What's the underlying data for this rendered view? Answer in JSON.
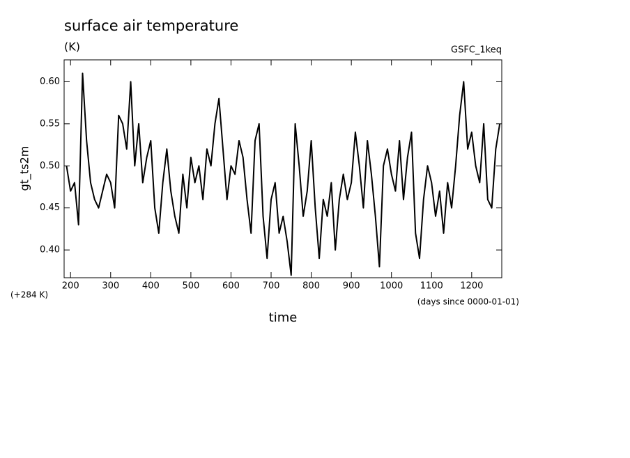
{
  "chart_data": {
    "type": "line",
    "title": "surface air temperature",
    "subtitle": "(K)",
    "annotation": "GSFC_1keq",
    "y_offset_label": "(+284 K)",
    "x_unit_label": "(days since 0000-01-01)",
    "xlabel": "time",
    "ylabel": "gt_ts2m",
    "xlim": [
      184,
      1275
    ],
    "ylim": [
      0.367,
      0.626
    ],
    "xticks": [
      200,
      300,
      400,
      500,
      600,
      700,
      800,
      900,
      1000,
      1100,
      1200
    ],
    "yticks": [
      {
        "value": 0.4,
        "label": "0.40"
      },
      0.45,
      {
        "value": 0.5,
        "label": "0.50"
      },
      0.55,
      {
        "value": 0.6,
        "label": "0.60"
      }
    ],
    "x": [
      190,
      200,
      210,
      220,
      230,
      240,
      250,
      260,
      270,
      280,
      290,
      300,
      310,
      320,
      330,
      340,
      350,
      360,
      370,
      380,
      390,
      400,
      410,
      420,
      430,
      440,
      450,
      460,
      470,
      480,
      490,
      500,
      510,
      520,
      530,
      540,
      550,
      560,
      570,
      580,
      590,
      600,
      610,
      620,
      630,
      640,
      650,
      660,
      670,
      680,
      690,
      700,
      710,
      720,
      730,
      740,
      750,
      760,
      770,
      780,
      790,
      800,
      810,
      820,
      830,
      840,
      850,
      860,
      870,
      880,
      890,
      900,
      910,
      920,
      930,
      940,
      950,
      960,
      970,
      980,
      990,
      1000,
      1010,
      1020,
      1030,
      1040,
      1050,
      1060,
      1070,
      1080,
      1090,
      1100,
      1110,
      1120,
      1130,
      1140,
      1150,
      1160,
      1170,
      1180,
      1190,
      1200,
      1210,
      1220,
      1230,
      1240,
      1250,
      1260,
      1270
    ],
    "series": [
      {
        "name": "gt_ts2m",
        "color": "#000000",
        "values": [
          0.5,
          0.47,
          0.48,
          0.43,
          0.61,
          0.53,
          0.48,
          0.46,
          0.45,
          0.47,
          0.49,
          0.48,
          0.45,
          0.56,
          0.55,
          0.52,
          0.6,
          0.5,
          0.55,
          0.48,
          0.51,
          0.53,
          0.45,
          0.42,
          0.48,
          0.52,
          0.47,
          0.44,
          0.42,
          0.49,
          0.45,
          0.51,
          0.48,
          0.5,
          0.46,
          0.52,
          0.5,
          0.55,
          0.58,
          0.52,
          0.46,
          0.5,
          0.49,
          0.53,
          0.51,
          0.46,
          0.42,
          0.53,
          0.55,
          0.44,
          0.39,
          0.46,
          0.48,
          0.42,
          0.44,
          0.41,
          0.37,
          0.55,
          0.5,
          0.44,
          0.47,
          0.53,
          0.45,
          0.39,
          0.46,
          0.44,
          0.48,
          0.4,
          0.46,
          0.49,
          0.46,
          0.48,
          0.54,
          0.5,
          0.45,
          0.53,
          0.49,
          0.44,
          0.38,
          0.5,
          0.52,
          0.49,
          0.47,
          0.53,
          0.46,
          0.51,
          0.54,
          0.42,
          0.39,
          0.46,
          0.5,
          0.48,
          0.44,
          0.47,
          0.42,
          0.48,
          0.45,
          0.5,
          0.56,
          0.6,
          0.52,
          0.54,
          0.5,
          0.48,
          0.55,
          0.46,
          0.45,
          0.52,
          0.55
        ]
      }
    ]
  }
}
